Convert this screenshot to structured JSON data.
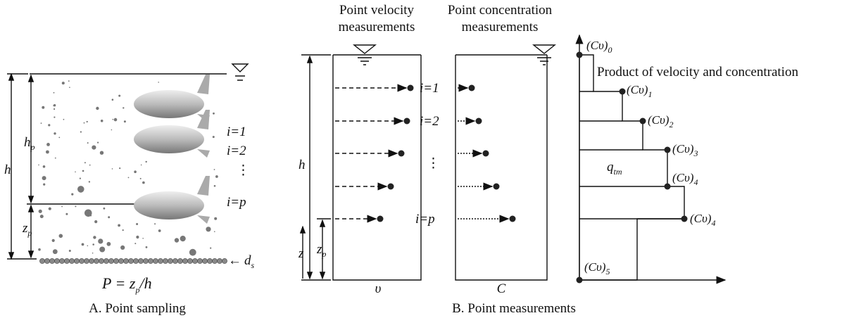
{
  "panel_a": {
    "caption": "A. Point sampling",
    "formula": {
      "lhs": "P = z",
      "sub": "p",
      "rhs": "/h"
    },
    "depth": "h",
    "hp": {
      "base": "h",
      "sub": "p"
    },
    "zp": {
      "base": "z",
      "sub": "p"
    },
    "ds": {
      "arrow": "←",
      "base": "d",
      "sub": "s"
    },
    "samples": [
      "i=1",
      "i=2",
      "⋮",
      "i=p"
    ]
  },
  "panel_b": {
    "caption": "B. Point measurements",
    "velocity_title": [
      "Point velocity",
      "measurements"
    ],
    "concentration_title": [
      "Point concentration",
      "measurements"
    ],
    "depth": "h",
    "z": "z",
    "zp": {
      "base": "z",
      "sub": "p"
    },
    "samples": [
      "i=1",
      "i=2",
      "⋮",
      "i=p"
    ],
    "velocity_axis": "υ",
    "concentration_axis": "C",
    "product_title": "Product of velocity and concentration",
    "qtm": {
      "base": "q",
      "sub": "tm"
    },
    "products": [
      {
        "base": "(Cυ)",
        "sub": "0"
      },
      {
        "base": "(Cυ)",
        "sub": "1"
      },
      {
        "base": "(Cυ)",
        "sub": "2"
      },
      {
        "base": "(Cυ)",
        "sub": "3"
      },
      {
        "base": "(Cυ)",
        "sub": "4"
      },
      {
        "base": "(Cυ)",
        "sub": "4"
      },
      {
        "base": "(Cυ)",
        "sub": "5"
      }
    ]
  }
}
